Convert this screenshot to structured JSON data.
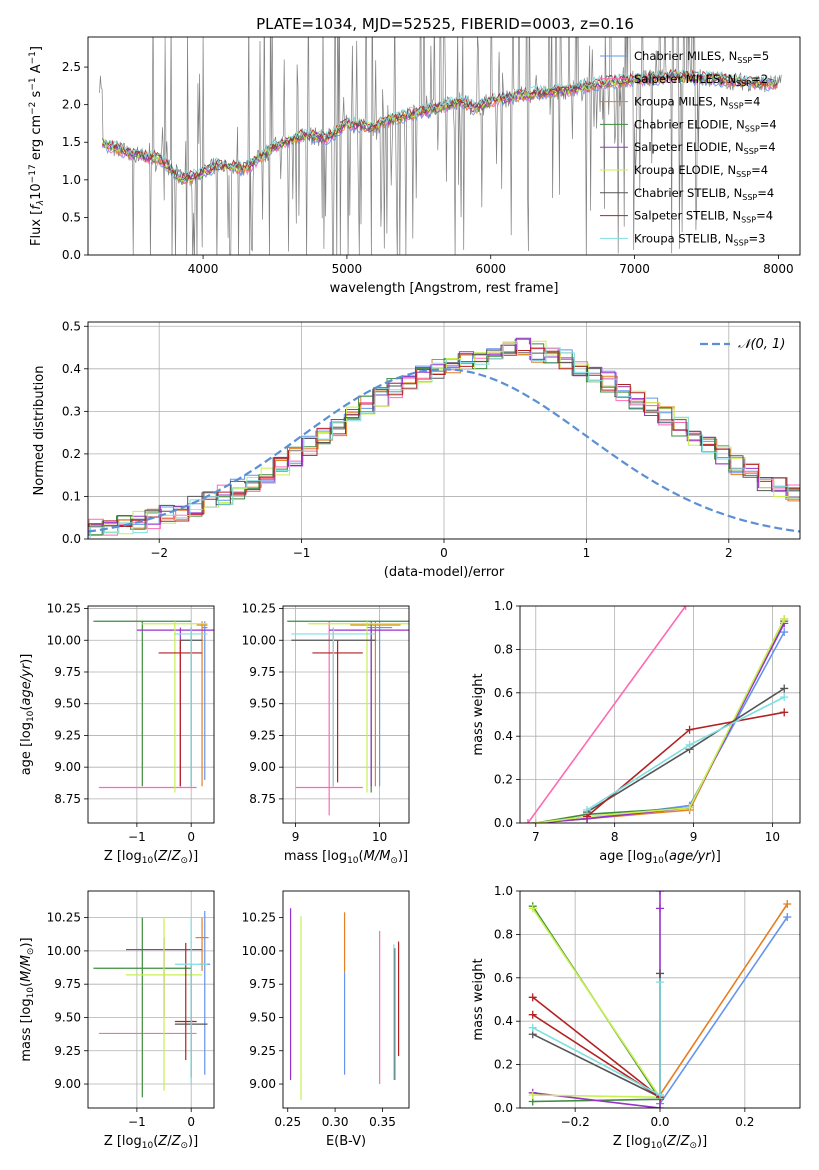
{
  "title": "PLATE=1034, MJD=52525, FIBERID=0003, z=0.16",
  "colors": {
    "chabrier_miles": "#6495ed",
    "salpeter_miles": "#ff69b4",
    "kroupa_miles": "#e67e22",
    "chabrier_elodie": "#3d8b3d",
    "salpeter_elodie": "#9932cc",
    "kroupa_elodie": "#c8f050",
    "chabrier_stelib": "#555555",
    "salpeter_stelib": "#b22222",
    "kroupa_stelib": "#7fdfdf",
    "data": "#808080",
    "normal": "#5b8fd6"
  },
  "chart_data": [
    {
      "id": "spectrum",
      "type": "line",
      "xlabel": "wavelength [Angstrom, rest frame]",
      "ylabel": "Flux [f_λ 10^-17 erg cm^-2 s^-1 A^-1]",
      "xlim": [
        3200,
        8150
      ],
      "ylim": [
        0,
        2.9
      ],
      "xticks": [
        4000,
        5000,
        6000,
        7000,
        8000
      ],
      "yticks": [
        0.0,
        0.5,
        1.0,
        1.5,
        2.0,
        2.5
      ],
      "legend_position": "upper-right",
      "legend": [
        {
          "name": "Chabrier MILES, N_SSP=5",
          "base": "Chabrier MILES, N",
          "sub": "SSP",
          "tail": "=5",
          "color": "chabrier_miles"
        },
        {
          "name": "Salpeter MILES, N_SSP=2",
          "base": "Salpeter MILES, N",
          "sub": "SSP",
          "tail": "=2",
          "color": "salpeter_miles"
        },
        {
          "name": "Kroupa MILES, N_SSP=4",
          "base": "Kroupa MILES, N",
          "sub": "SSP",
          "tail": "=4",
          "color": "kroupa_miles"
        },
        {
          "name": "Chabrier ELODIE, N_SSP=4",
          "base": "Chabrier ELODIE, N",
          "sub": "SSP",
          "tail": "=4",
          "color": "chabrier_elodie"
        },
        {
          "name": "Salpeter ELODIE, N_SSP=4",
          "base": "Salpeter ELODIE, N",
          "sub": "SSP",
          "tail": "=4",
          "color": "salpeter_elodie"
        },
        {
          "name": "Kroupa ELODIE, N_SSP=4",
          "base": "Kroupa ELODIE, N",
          "sub": "SSP",
          "tail": "=4",
          "color": "kroupa_elodie"
        },
        {
          "name": "Chabrier STELIB, N_SSP=4",
          "base": "Chabrier STELIB, N",
          "sub": "SSP",
          "tail": "=4",
          "color": "chabrier_stelib"
        },
        {
          "name": "Salpeter STELIB, N_SSP=4",
          "base": "Salpeter STELIB, N",
          "sub": "SSP",
          "tail": "=4",
          "color": "salpeter_stelib"
        },
        {
          "name": "Kroupa STELIB, N_SSP=3",
          "base": "Kroupa STELIB, N",
          "sub": "SSP",
          "tail": "=3",
          "color": "kroupa_stelib"
        }
      ],
      "model_trend": [
        [
          3300,
          1.48
        ],
        [
          3500,
          1.35
        ],
        [
          3700,
          1.28
        ],
        [
          3850,
          1.02
        ],
        [
          3950,
          1.05
        ],
        [
          4100,
          1.2
        ],
        [
          4300,
          1.15
        ],
        [
          4500,
          1.45
        ],
        [
          4700,
          1.6
        ],
        [
          4861,
          1.55
        ],
        [
          5000,
          1.75
        ],
        [
          5175,
          1.7
        ],
        [
          5300,
          1.8
        ],
        [
          5500,
          1.9
        ],
        [
          5800,
          2.05
        ],
        [
          5890,
          1.95
        ],
        [
          6000,
          2.05
        ],
        [
          6300,
          2.15
        ],
        [
          6563,
          2.2
        ],
        [
          6800,
          2.3
        ],
        [
          7000,
          2.33
        ],
        [
          7300,
          2.38
        ],
        [
          7600,
          2.33
        ],
        [
          7900,
          2.28
        ],
        [
          8000,
          2.28
        ]
      ]
    },
    {
      "id": "residuals",
      "type": "bar",
      "xlabel": "(data-model)/error",
      "ylabel": "Normed distribution",
      "xlim": [
        -2.5,
        2.5
      ],
      "ylim": [
        0,
        0.51
      ],
      "xticks": [
        -2,
        -1,
        0,
        1,
        2
      ],
      "yticks": [
        0.0,
        0.1,
        0.2,
        0.3,
        0.4,
        0.5
      ],
      "grid": true,
      "legend": [
        {
          "name": "N(0,1)",
          "label": "𝒩(0, 1)",
          "color": "normal"
        }
      ],
      "legend_position": "upper-right",
      "bin_width": 0.1,
      "histogram_center": [
        0.018,
        0.022,
        0.027,
        0.033,
        0.04,
        0.047,
        0.056,
        0.066,
        0.077,
        0.09,
        0.104,
        0.119,
        0.136,
        0.155,
        0.175,
        0.196,
        0.218,
        0.241,
        0.265,
        0.288,
        0.312,
        0.334,
        0.355,
        0.373,
        0.388,
        0.4,
        0.41,
        0.42,
        0.425,
        0.43,
        0.44,
        0.45,
        0.44,
        0.43,
        0.42,
        0.405,
        0.39,
        0.37,
        0.35,
        0.33,
        0.31,
        0.29,
        0.265,
        0.24,
        0.218,
        0.196,
        0.175,
        0.155,
        0.136,
        0.119,
        0.104,
        0.09,
        0.077,
        0.066,
        0.056,
        0.047,
        0.04,
        0.034,
        0.04,
        0.04
      ]
    },
    {
      "id": "age_vs_Z",
      "type": "scatter",
      "xlabel": "Z [log10(Z/Z☉)]",
      "ylabel": "age [log10(age/yr)]",
      "xlim": [
        -1.9,
        0.42
      ],
      "ylim": [
        8.56,
        10.27
      ],
      "xticks": [
        -1,
        0
      ],
      "yticks": [
        8.75,
        9.0,
        9.25,
        9.5,
        9.75,
        10.0,
        10.25
      ],
      "grid": true,
      "points": [
        {
          "color": "chabrier_miles",
          "x": 0.25,
          "y": 10.1,
          "xerr": 0.05,
          "ylo": 8.9,
          "yhi": 10.15
        },
        {
          "color": "salpeter_miles",
          "x": -0.8,
          "y": 8.84,
          "xerr": 0.9,
          "ylo": 8.84,
          "yhi": 8.84
        },
        {
          "color": "kroupa_miles",
          "x": 0.2,
          "y": 10.12,
          "xerr": 0.1,
          "ylo": 8.85,
          "yhi": 10.15
        },
        {
          "color": "chabrier_elodie",
          "x": -0.9,
          "y": 10.15,
          "xerr": 0.9,
          "ylo": 8.85,
          "yhi": 10.15
        },
        {
          "color": "salpeter_elodie",
          "x": -0.2,
          "y": 10.08,
          "xerr": 0.8,
          "ylo": 8.85,
          "yhi": 10.1
        },
        {
          "color": "kroupa_elodie",
          "x": -0.3,
          "y": 10.13,
          "xerr": 0.6,
          "ylo": 8.8,
          "yhi": 10.15
        },
        {
          "color": "chabrier_stelib",
          "x": 0.0,
          "y": 10.0,
          "xerr": 0.2,
          "ylo": 8.85,
          "yhi": 10.1
        },
        {
          "color": "salpeter_stelib",
          "x": -0.2,
          "y": 9.9,
          "xerr": 0.4,
          "ylo": 8.85,
          "yhi": 10.0
        },
        {
          "color": "kroupa_stelib",
          "x": 0.0,
          "y": 10.05,
          "xerr": 0.3,
          "ylo": 8.85,
          "yhi": 10.1
        }
      ]
    },
    {
      "id": "age_vs_mass",
      "type": "scatter",
      "xlabel": "mass [log10(M/M☉)]",
      "ylabel": "",
      "xlim": [
        8.85,
        10.35
      ],
      "ylim": [
        8.56,
        10.27
      ],
      "xticks": [
        9,
        10
      ],
      "yticks": [
        8.75,
        9.0,
        9.25,
        9.5,
        9.75,
        10.0,
        10.25
      ],
      "grid": true,
      "points": [
        {
          "color": "chabrier_miles",
          "x": 10.0,
          "y": 10.1,
          "xerr": 0.15,
          "ylo": 8.85,
          "yhi": 10.15
        },
        {
          "color": "salpeter_miles",
          "x": 9.4,
          "y": 8.84,
          "xerr": 0.4,
          "ylo": 8.62,
          "yhi": 10.15
        },
        {
          "color": "kroupa_miles",
          "x": 9.95,
          "y": 10.12,
          "xerr": 0.3,
          "ylo": 8.85,
          "yhi": 10.15
        },
        {
          "color": "chabrier_elodie",
          "x": 9.9,
          "y": 10.15,
          "xerr": 1.0,
          "ylo": 8.8,
          "yhi": 10.15
        },
        {
          "color": "salpeter_elodie",
          "x": 9.9,
          "y": 10.08,
          "xerr": 0.5,
          "ylo": 8.85,
          "yhi": 10.1
        },
        {
          "color": "kroupa_elodie",
          "x": 9.85,
          "y": 10.13,
          "xerr": 0.7,
          "ylo": 8.8,
          "yhi": 10.15
        },
        {
          "color": "chabrier_stelib",
          "x": 9.45,
          "y": 10.0,
          "xerr": 0.5,
          "ylo": 8.85,
          "yhi": 10.1
        },
        {
          "color": "salpeter_stelib",
          "x": 9.5,
          "y": 9.9,
          "xerr": 0.3,
          "ylo": 8.88,
          "yhi": 10.0
        },
        {
          "color": "kroupa_stelib",
          "x": 9.45,
          "y": 10.05,
          "xerr": 0.5,
          "ylo": 8.85,
          "yhi": 10.1
        }
      ]
    },
    {
      "id": "mass_weight_vs_age",
      "type": "line",
      "xlabel": "age [log10(age/yr)]",
      "ylabel": "mass weight",
      "xlim": [
        6.8,
        10.35
      ],
      "ylim": [
        0,
        1.0
      ],
      "xticks": [
        7,
        8,
        9,
        10
      ],
      "yticks": [
        0.0,
        0.2,
        0.4,
        0.6,
        0.8,
        1.0
      ],
      "grid": true,
      "series": [
        {
          "color": "salpeter_miles",
          "points": [
            [
              6.9,
              0.0
            ],
            [
              8.9,
              1.0
            ]
          ]
        },
        {
          "color": "chabrier_miles",
          "points": [
            [
              7.0,
              0.0
            ],
            [
              7.65,
              0.02
            ],
            [
              8.95,
              0.08
            ],
            [
              10.15,
              0.88
            ]
          ]
        },
        {
          "color": "kroupa_miles",
          "points": [
            [
              7.0,
              0.0
            ],
            [
              7.65,
              0.02
            ],
            [
              8.95,
              0.06
            ],
            [
              10.15,
              0.94
            ]
          ]
        },
        {
          "color": "chabrier_elodie",
          "points": [
            [
              7.0,
              0.0
            ],
            [
              7.65,
              0.04
            ],
            [
              8.95,
              0.07
            ],
            [
              10.15,
              0.93
            ]
          ]
        },
        {
          "color": "salpeter_elodie",
          "points": [
            [
              7.0,
              0.0
            ],
            [
              7.65,
              0.02
            ],
            [
              8.95,
              0.07
            ],
            [
              10.15,
              0.92
            ]
          ]
        },
        {
          "color": "kroupa_elodie",
          "points": [
            [
              7.0,
              0.0
            ],
            [
              7.65,
              0.03
            ],
            [
              8.95,
              0.07
            ],
            [
              10.15,
              0.94
            ]
          ]
        },
        {
          "color": "chabrier_stelib",
          "points": [
            [
              7.65,
              0.05
            ],
            [
              8.95,
              0.34
            ],
            [
              10.15,
              0.62
            ]
          ]
        },
        {
          "color": "salpeter_stelib",
          "points": [
            [
              7.65,
              0.03
            ],
            [
              8.95,
              0.43
            ],
            [
              10.15,
              0.51
            ]
          ]
        },
        {
          "color": "kroupa_stelib",
          "points": [
            [
              7.65,
              0.06
            ],
            [
              8.95,
              0.36
            ],
            [
              10.15,
              0.58
            ]
          ]
        }
      ]
    },
    {
      "id": "mass_vs_Z",
      "type": "scatter",
      "xlabel": "Z [log10(Z/Z☉)]",
      "ylabel": "mass [log10(M/M☉)]",
      "xlim": [
        -1.9,
        0.42
      ],
      "ylim": [
        8.82,
        10.45
      ],
      "xticks": [
        -1,
        0
      ],
      "yticks": [
        9.0,
        9.25,
        9.5,
        9.75,
        10.0,
        10.25
      ],
      "grid": true,
      "points": [
        {
          "color": "chabrier_miles",
          "x": 0.25,
          "y": 9.9,
          "xerr": 0.1,
          "ylo": 9.07,
          "yhi": 10.3
        },
        {
          "color": "salpeter_miles",
          "x": -0.8,
          "y": 9.38,
          "xerr": 0.9,
          "ylo": 9.38,
          "yhi": 9.38
        },
        {
          "color": "kroupa_miles",
          "x": 0.2,
          "y": 10.1,
          "xerr": 0.12,
          "ylo": 9.85,
          "yhi": 10.25
        },
        {
          "color": "chabrier_elodie",
          "x": -0.9,
          "y": 9.87,
          "xerr": 0.9,
          "ylo": 8.9,
          "yhi": 10.25
        },
        {
          "color": "salpeter_elodie",
          "x": -0.5,
          "y": 10.01,
          "xerr": 0.7,
          "ylo": 9.5,
          "yhi": 10.1
        },
        {
          "color": "kroupa_elodie",
          "x": -0.5,
          "y": 9.82,
          "xerr": 0.7,
          "ylo": 8.95,
          "yhi": 10.25
        },
        {
          "color": "chabrier_stelib",
          "x": 0.0,
          "y": 9.45,
          "xerr": 0.3,
          "ylo": 9.05,
          "yhi": 9.9
        },
        {
          "color": "salpeter_stelib",
          "x": -0.1,
          "y": 9.47,
          "xerr": 0.2,
          "ylo": 9.18,
          "yhi": 10.06
        },
        {
          "color": "kroupa_stelib",
          "x": 0.0,
          "y": 9.9,
          "xerr": 0.3,
          "ylo": 9.0,
          "yhi": 10.25
        }
      ]
    },
    {
      "id": "mass_vs_ebv",
      "type": "scatter",
      "xlabel": "E(B-V)",
      "ylabel": "",
      "xlim": [
        0.245,
        0.378
      ],
      "ylim": [
        8.82,
        10.45
      ],
      "xticks": [
        0.25,
        0.3,
        0.35
      ],
      "yticks": [
        9.0,
        9.25,
        9.5,
        9.75,
        10.0,
        10.25
      ],
      "grid": false,
      "points": [
        {
          "color": "salpeter_elodie",
          "x": 0.253,
          "ylo": 9.03,
          "yhi": 10.32
        },
        {
          "color": "kroupa_elodie",
          "x": 0.264,
          "ylo": 8.88,
          "yhi": 10.26
        },
        {
          "color": "chabrier_miles",
          "x": 0.31,
          "ylo": 9.07,
          "yhi": 9.84
        },
        {
          "color": "kroupa_miles",
          "x": 0.31,
          "ylo": 9.84,
          "yhi": 10.29
        },
        {
          "color": "salpeter_miles",
          "x": 0.347,
          "ylo": 9.0,
          "yhi": 10.15
        },
        {
          "color": "chabrier_stelib",
          "x": 0.363,
          "ylo": 9.03,
          "yhi": 10.02
        },
        {
          "color": "salpeter_stelib",
          "x": 0.367,
          "ylo": 9.21,
          "yhi": 10.07
        },
        {
          "color": "kroupa_stelib",
          "x": 0.362,
          "ylo": 9.03,
          "yhi": 10.05
        }
      ]
    },
    {
      "id": "mass_weight_vs_Z",
      "type": "line",
      "xlabel": "Z [log10(Z/Z☉)]",
      "ylabel": "mass weight",
      "xlim": [
        -0.33,
        0.33
      ],
      "ylim": [
        0,
        1.0
      ],
      "xticks": [
        -0.2,
        0.0,
        0.2
      ],
      "yticks": [
        0.0,
        0.2,
        0.4,
        0.6,
        0.8,
        1.0
      ],
      "grid": true,
      "series": [
        {
          "color": "chabrier_miles",
          "points": [
            [
              0.0,
              0.02
            ],
            [
              0.3,
              0.88
            ]
          ]
        },
        {
          "color": "kroupa_miles",
          "points": [
            [
              0.0,
              0.06
            ],
            [
              0.3,
              0.94
            ]
          ]
        },
        {
          "color": "chabrier_elodie",
          "points": [
            [
              -0.3,
              0.93
            ],
            [
              0.0,
              0.04
            ],
            [
              -0.3,
              0.03
            ]
          ]
        },
        {
          "color": "salpeter_elodie",
          "points": [
            [
              -0.3,
              0.07
            ],
            [
              0.0,
              0.0
            ],
            [
              0.0,
              0.92
            ],
            [
              0.0,
              1.0
            ]
          ]
        },
        {
          "color": "kroupa_elodie",
          "points": [
            [
              -0.3,
              0.92
            ],
            [
              0.0,
              0.05
            ],
            [
              -0.3,
              0.06
            ]
          ]
        },
        {
          "color": "chabrier_stelib",
          "points": [
            [
              -0.3,
              0.34
            ],
            [
              0.0,
              0.05
            ],
            [
              0.0,
              0.62
            ]
          ]
        },
        {
          "color": "salpeter_stelib",
          "points": [
            [
              -0.3,
              0.51
            ],
            [
              0.0,
              0.05
            ],
            [
              -0.3,
              0.43
            ]
          ]
        },
        {
          "color": "kroupa_stelib",
          "points": [
            [
              -0.3,
              0.37
            ],
            [
              0.0,
              0.06
            ],
            [
              0.0,
              0.58
            ]
          ]
        }
      ]
    }
  ]
}
